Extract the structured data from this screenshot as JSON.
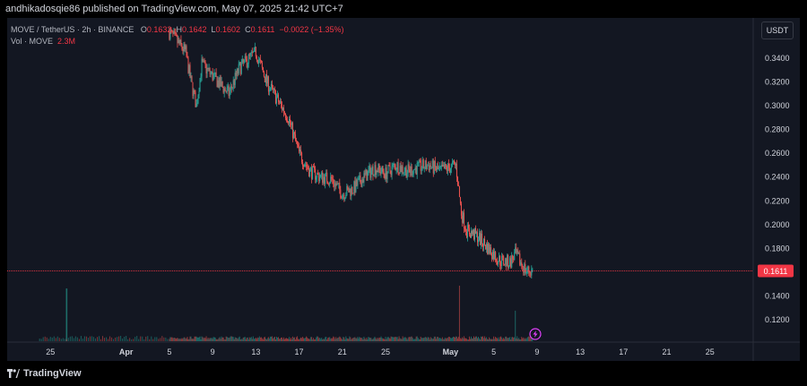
{
  "header": {
    "publisher": "andhikadosqie86 published on TradingView.com, May 07, 2025 21:42 UTC+7"
  },
  "legend": {
    "symbol": "MOVE / TetherUS · 2h · BINANCE",
    "o_label": "O",
    "o_value": "0.1632",
    "h_label": "H",
    "h_value": "0.1642",
    "l_label": "L",
    "l_value": "0.1602",
    "c_label": "C",
    "c_value": "0.1611",
    "change": "−0.0022 (−1.35%)",
    "vol_label": "Vol · MOVE",
    "vol_value": "2.3M"
  },
  "currency_button": "USDT",
  "footer": {
    "brand": "TradingView"
  },
  "colors": {
    "up": "#26a69a",
    "down": "#ef5350",
    "price_line": "#f23645",
    "background": "#131722",
    "text": "#b2b5be"
  },
  "chart_data": {
    "type": "candlestick",
    "title": "MOVE / TetherUS · 2h · BINANCE",
    "current_price": 0.1611,
    "current_price_label": "0.1611",
    "ylim": [
      0.1,
      0.36
    ],
    "y_ticks": [
      "0.3400",
      "0.3200",
      "0.3000",
      "0.2800",
      "0.2600",
      "0.2400",
      "0.2200",
      "0.2000",
      "0.1800",
      "0.1600",
      "0.1400",
      "0.1200"
    ],
    "y_tick_values": [
      0.34,
      0.32,
      0.3,
      0.28,
      0.26,
      0.24,
      0.22,
      0.2,
      0.18,
      0.16,
      0.14,
      0.12
    ],
    "x_ticks": [
      "25",
      "Apr",
      "5",
      "9",
      "13",
      "17",
      "21",
      "25",
      "May",
      "5",
      "9",
      "13",
      "17",
      "21",
      "25"
    ],
    "x_tick_days": [
      -6,
      1,
      5,
      9,
      13,
      17,
      21,
      25,
      31,
      35,
      39,
      43,
      47,
      51,
      55
    ],
    "xlim_days": [
      -10,
      59
    ],
    "price_path": [
      {
        "day": 5.0,
        "price": 0.362
      },
      {
        "day": 6.5,
        "price": 0.345
      },
      {
        "day": 7.0,
        "price": 0.32
      },
      {
        "day": 7.5,
        "price": 0.3
      },
      {
        "day": 8.0,
        "price": 0.335
      },
      {
        "day": 9.0,
        "price": 0.325
      },
      {
        "day": 10.5,
        "price": 0.31
      },
      {
        "day": 11.5,
        "price": 0.332
      },
      {
        "day": 13.0,
        "price": 0.345
      },
      {
        "day": 14.0,
        "price": 0.32
      },
      {
        "day": 15.0,
        "price": 0.305
      },
      {
        "day": 16.0,
        "price": 0.29
      },
      {
        "day": 17.0,
        "price": 0.26
      },
      {
        "day": 18.0,
        "price": 0.245
      },
      {
        "day": 19.0,
        "price": 0.24
      },
      {
        "day": 20.0,
        "price": 0.238
      },
      {
        "day": 21.0,
        "price": 0.226
      },
      {
        "day": 22.0,
        "price": 0.23
      },
      {
        "day": 23.0,
        "price": 0.24
      },
      {
        "day": 24.0,
        "price": 0.248
      },
      {
        "day": 25.0,
        "price": 0.243
      },
      {
        "day": 26.0,
        "price": 0.25
      },
      {
        "day": 27.0,
        "price": 0.245
      },
      {
        "day": 28.0,
        "price": 0.248
      },
      {
        "day": 29.0,
        "price": 0.25
      },
      {
        "day": 30.0,
        "price": 0.245
      },
      {
        "day": 31.5,
        "price": 0.25
      },
      {
        "day": 32.0,
        "price": 0.21
      },
      {
        "day": 32.5,
        "price": 0.195
      },
      {
        "day": 33.5,
        "price": 0.19
      },
      {
        "day": 34.5,
        "price": 0.18
      },
      {
        "day": 35.5,
        "price": 0.17
      },
      {
        "day": 36.5,
        "price": 0.168
      },
      {
        "day": 37.0,
        "price": 0.175
      },
      {
        "day": 37.5,
        "price": 0.168
      },
      {
        "day": 38.0,
        "price": 0.161
      },
      {
        "day": 38.6,
        "price": 0.1611
      }
    ],
    "volume_spikes": [
      {
        "day": -4.5,
        "volume_rel": 0.95
      },
      {
        "day": 31.8,
        "volume_rel": 1.0
      },
      {
        "day": 37.0,
        "volume_rel": 0.55
      }
    ]
  }
}
